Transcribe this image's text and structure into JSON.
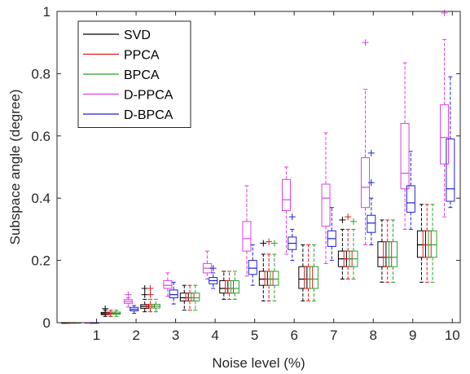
{
  "chart_data": {
    "type": "boxplot",
    "xlabel": "Noise level (%)",
    "ylabel": "Subspace angle (degree)",
    "xlim": [
      0,
      10.2
    ],
    "ylim": [
      0,
      1
    ],
    "x_ticks": [
      "1",
      "2",
      "3",
      "4",
      "5",
      "6",
      "7",
      "8",
      "9",
      "10"
    ],
    "y_ticks": [
      {
        "v": 0,
        "t": "0"
      },
      {
        "v": 0.2,
        "t": "0.2"
      },
      {
        "v": 0.4,
        "t": "0.4"
      },
      {
        "v": 0.6,
        "t": "0.6"
      },
      {
        "v": 0.8,
        "t": "0.8"
      },
      {
        "v": 1,
        "t": "1"
      }
    ],
    "grid": false,
    "legend_position": "top-left",
    "series": [
      {
        "name": "SVD",
        "color": "#000000",
        "offset": 0.22,
        "boxes": [
          {
            "x": 0,
            "q1": 0,
            "med": 0,
            "q3": 0,
            "lo": 0,
            "hi": 0,
            "out": []
          },
          {
            "x": 1,
            "q1": 0.026,
            "med": 0.029,
            "q3": 0.033,
            "lo": 0.02,
            "hi": 0.04,
            "out": [
              0.045
            ]
          },
          {
            "x": 2,
            "q1": 0.046,
            "med": 0.052,
            "q3": 0.058,
            "lo": 0.035,
            "hi": 0.075,
            "out": [
              0.09,
              0.11
            ]
          },
          {
            "x": 3,
            "q1": 0.07,
            "med": 0.08,
            "q3": 0.095,
            "lo": 0.04,
            "hi": 0.12,
            "out": []
          },
          {
            "x": 4,
            "q1": 0.095,
            "med": 0.11,
            "q3": 0.135,
            "lo": 0.075,
            "hi": 0.165,
            "out": []
          },
          {
            "x": 5,
            "q1": 0.12,
            "med": 0.14,
            "q3": 0.165,
            "lo": 0.07,
            "hi": 0.22,
            "out": [
              0.255
            ]
          },
          {
            "x": 6,
            "q1": 0.11,
            "med": 0.14,
            "q3": 0.18,
            "lo": 0.07,
            "hi": 0.25,
            "out": []
          },
          {
            "x": 7,
            "q1": 0.18,
            "med": 0.205,
            "q3": 0.23,
            "lo": 0.14,
            "hi": 0.3,
            "out": [
              0.33
            ]
          },
          {
            "x": 8,
            "q1": 0.18,
            "med": 0.21,
            "q3": 0.26,
            "lo": 0.13,
            "hi": 0.33,
            "out": []
          },
          {
            "x": 9,
            "q1": 0.21,
            "med": 0.25,
            "q3": 0.295,
            "lo": 0.13,
            "hi": 0.38,
            "out": []
          }
        ]
      },
      {
        "name": "PPCA",
        "color": "#e41a1c",
        "offset": 0.36,
        "boxes": [
          {
            "x": 0,
            "q1": 0,
            "med": 0,
            "q3": 0,
            "lo": 0,
            "hi": 0,
            "out": []
          },
          {
            "x": 1,
            "q1": 0.027,
            "med": 0.03,
            "q3": 0.034,
            "lo": 0.02,
            "hi": 0.04,
            "out": []
          },
          {
            "x": 2,
            "q1": 0.047,
            "med": 0.053,
            "q3": 0.059,
            "lo": 0.035,
            "hi": 0.075,
            "out": [
              0.09,
              0.11
            ]
          },
          {
            "x": 3,
            "q1": 0.07,
            "med": 0.08,
            "q3": 0.095,
            "lo": 0.04,
            "hi": 0.12,
            "out": []
          },
          {
            "x": 4,
            "q1": 0.095,
            "med": 0.11,
            "q3": 0.135,
            "lo": 0.075,
            "hi": 0.165,
            "out": []
          },
          {
            "x": 5,
            "q1": 0.12,
            "med": 0.14,
            "q3": 0.165,
            "lo": 0.07,
            "hi": 0.22,
            "out": [
              0.26
            ]
          },
          {
            "x": 6,
            "q1": 0.11,
            "med": 0.14,
            "q3": 0.18,
            "lo": 0.07,
            "hi": 0.25,
            "out": []
          },
          {
            "x": 7,
            "q1": 0.18,
            "med": 0.205,
            "q3": 0.23,
            "lo": 0.14,
            "hi": 0.3,
            "out": [
              0.34
            ]
          },
          {
            "x": 8,
            "q1": 0.18,
            "med": 0.21,
            "q3": 0.26,
            "lo": 0.13,
            "hi": 0.33,
            "out": []
          },
          {
            "x": 9,
            "q1": 0.21,
            "med": 0.25,
            "q3": 0.295,
            "lo": 0.13,
            "hi": 0.38,
            "out": []
          }
        ]
      },
      {
        "name": "BPCA",
        "color": "#2ca02c",
        "offset": 0.5,
        "boxes": [
          {
            "x": 0,
            "q1": 0,
            "med": 0,
            "q3": 0,
            "lo": 0,
            "hi": 0,
            "out": []
          },
          {
            "x": 1,
            "q1": 0.027,
            "med": 0.03,
            "q3": 0.034,
            "lo": 0.02,
            "hi": 0.04,
            "out": []
          },
          {
            "x": 2,
            "q1": 0.047,
            "med": 0.053,
            "q3": 0.059,
            "lo": 0.035,
            "hi": 0.075,
            "out": []
          },
          {
            "x": 3,
            "q1": 0.07,
            "med": 0.08,
            "q3": 0.095,
            "lo": 0.04,
            "hi": 0.12,
            "out": []
          },
          {
            "x": 4,
            "q1": 0.095,
            "med": 0.11,
            "q3": 0.135,
            "lo": 0.075,
            "hi": 0.165,
            "out": []
          },
          {
            "x": 5,
            "q1": 0.12,
            "med": 0.14,
            "q3": 0.165,
            "lo": 0.07,
            "hi": 0.22,
            "out": [
              0.255
            ]
          },
          {
            "x": 6,
            "q1": 0.11,
            "med": 0.14,
            "q3": 0.18,
            "lo": 0.07,
            "hi": 0.25,
            "out": []
          },
          {
            "x": 7,
            "q1": 0.18,
            "med": 0.205,
            "q3": 0.23,
            "lo": 0.14,
            "hi": 0.3,
            "out": [
              0.325
            ]
          },
          {
            "x": 8,
            "q1": 0.18,
            "med": 0.21,
            "q3": 0.26,
            "lo": 0.13,
            "hi": 0.33,
            "out": []
          },
          {
            "x": 9,
            "q1": 0.21,
            "med": 0.25,
            "q3": 0.295,
            "lo": 0.13,
            "hi": 0.38,
            "out": []
          }
        ]
      },
      {
        "name": "D-PPCA",
        "color": "#e040e0",
        "offset": -0.2,
        "boxes": [
          {
            "x": 1,
            "q1": 0,
            "med": 0,
            "q3": 0,
            "lo": 0,
            "hi": 0,
            "out": []
          },
          {
            "x": 2,
            "q1": 0.062,
            "med": 0.068,
            "q3": 0.074,
            "lo": 0.05,
            "hi": 0.08,
            "out": [
              0.09
            ]
          },
          {
            "x": 3,
            "q1": 0.11,
            "med": 0.12,
            "q3": 0.135,
            "lo": 0.085,
            "hi": 0.16,
            "out": []
          },
          {
            "x": 4,
            "q1": 0.16,
            "med": 0.175,
            "q3": 0.19,
            "lo": 0.14,
            "hi": 0.23,
            "out": []
          },
          {
            "x": 5,
            "q1": 0.23,
            "med": 0.27,
            "q3": 0.325,
            "lo": 0.15,
            "hi": 0.44,
            "out": []
          },
          {
            "x": 6,
            "q1": 0.36,
            "med": 0.395,
            "q3": 0.46,
            "lo": 0.22,
            "hi": 0.5,
            "out": []
          },
          {
            "x": 7,
            "q1": 0.31,
            "med": 0.4,
            "q3": 0.445,
            "lo": 0.19,
            "hi": 0.61,
            "out": []
          },
          {
            "x": 8,
            "q1": 0.37,
            "med": 0.435,
            "q3": 0.53,
            "lo": 0.25,
            "hi": 0.75,
            "out": [
              0.9
            ]
          },
          {
            "x": 9,
            "q1": 0.43,
            "med": 0.48,
            "q3": 0.64,
            "lo": 0.3,
            "hi": 0.835,
            "out": []
          },
          {
            "x": 10,
            "q1": 0.51,
            "med": 0.595,
            "q3": 0.7,
            "lo": 0.34,
            "hi": 0.91,
            "out": [
              0.995
            ]
          }
        ]
      },
      {
        "name": "D-BPCA",
        "color": "#1f1fd8",
        "offset": -0.05,
        "boxes": [
          {
            "x": 1,
            "q1": 0,
            "med": 0,
            "q3": 0,
            "lo": 0,
            "hi": 0,
            "out": []
          },
          {
            "x": 2,
            "q1": 0.038,
            "med": 0.043,
            "q3": 0.049,
            "lo": 0.03,
            "hi": 0.055,
            "out": []
          },
          {
            "x": 3,
            "q1": 0.08,
            "med": 0.09,
            "q3": 0.105,
            "lo": 0.06,
            "hi": 0.13,
            "out": []
          },
          {
            "x": 4,
            "q1": 0.125,
            "med": 0.135,
            "q3": 0.145,
            "lo": 0.11,
            "hi": 0.16,
            "out": [
              0.175
            ]
          },
          {
            "x": 5,
            "q1": 0.155,
            "med": 0.175,
            "q3": 0.2,
            "lo": 0.12,
            "hi": 0.25,
            "out": []
          },
          {
            "x": 6,
            "q1": 0.235,
            "med": 0.255,
            "q3": 0.275,
            "lo": 0.2,
            "hi": 0.3,
            "out": [
              0.34
            ]
          },
          {
            "x": 7,
            "q1": 0.245,
            "med": 0.27,
            "q3": 0.295,
            "lo": 0.2,
            "hi": 0.37,
            "out": []
          },
          {
            "x": 8,
            "q1": 0.29,
            "med": 0.32,
            "q3": 0.345,
            "lo": 0.25,
            "hi": 0.4,
            "out": [
              0.45,
              0.545
            ]
          },
          {
            "x": 9,
            "q1": 0.355,
            "med": 0.385,
            "q3": 0.44,
            "lo": 0.3,
            "hi": 0.55,
            "out": []
          },
          {
            "x": 10,
            "q1": 0.39,
            "med": 0.43,
            "q3": 0.59,
            "lo": 0.37,
            "hi": 0.79,
            "out": []
          }
        ]
      }
    ]
  }
}
